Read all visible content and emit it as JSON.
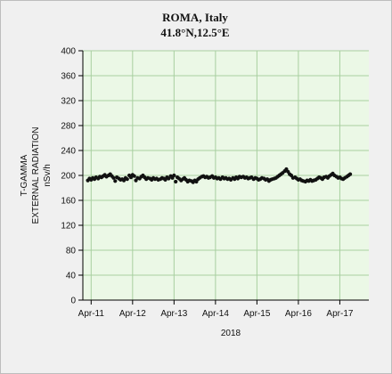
{
  "chart_data": {
    "type": "scatter",
    "title": "ROMA, Italy",
    "subtitle": "41.8°N,12.5°E",
    "ylabel_lines": [
      "T-GAMMA",
      "EXTERNAL RADIATION",
      "nSv/h"
    ],
    "xlabel": "2018",
    "ylim": [
      0,
      400
    ],
    "y_ticks": [
      0,
      40,
      80,
      120,
      160,
      200,
      240,
      280,
      320,
      360,
      400
    ],
    "x_ticks": [
      "Apr-11",
      "Apr-12",
      "Apr-13",
      "Apr-14",
      "Apr-15",
      "Apr-16",
      "Apr-17"
    ],
    "x_tick_day": [
      11,
      12,
      13,
      14,
      15,
      16,
      17
    ],
    "xlim_day": [
      10.8,
      17.7
    ],
    "grid": true,
    "colors": {
      "plot_bg": "#ebf8e6",
      "grid": "#a8cfa0",
      "marker": "#111111"
    },
    "series": [
      {
        "x_day": [
          10.92,
          10.96,
          11.0,
          11.04,
          11.08,
          11.12,
          11.17,
          11.21,
          11.25,
          11.29,
          11.33,
          11.37,
          11.42,
          11.46,
          11.5,
          11.54,
          11.58,
          11.62,
          11.67,
          11.71,
          11.75,
          11.79,
          11.83,
          11.87,
          11.92,
          11.96,
          12.0,
          12.04,
          12.08,
          12.12,
          12.17,
          12.21,
          12.25,
          12.29,
          12.33,
          12.37,
          12.42,
          12.46,
          12.5,
          12.54,
          12.58,
          12.62,
          12.67,
          12.71,
          12.75,
          12.79,
          12.83,
          12.87,
          12.92,
          12.96,
          13.0,
          13.04,
          13.08,
          13.12,
          13.17,
          13.21,
          13.25,
          13.29,
          13.33,
          13.37,
          13.42,
          13.46,
          13.5,
          13.54,
          13.58,
          13.62,
          13.67,
          13.71,
          13.75,
          13.79,
          13.83,
          13.87,
          13.92,
          13.96,
          14.0,
          14.04,
          14.08,
          14.12,
          14.17,
          14.21,
          14.25,
          14.29,
          14.33,
          14.37,
          14.42,
          14.46,
          14.5,
          14.54,
          14.58,
          14.62,
          14.67,
          14.71,
          14.75,
          14.79,
          14.83,
          14.87,
          14.92,
          14.96,
          15.0,
          15.04,
          15.08,
          15.12,
          15.17,
          15.21,
          15.25,
          15.29,
          15.33,
          15.37,
          15.42,
          15.46,
          15.5,
          15.54,
          15.58,
          15.62,
          15.67,
          15.71,
          15.75,
          15.79,
          15.83,
          15.87,
          15.92,
          15.96,
          16.0,
          16.04,
          16.08,
          16.12,
          16.17,
          16.21,
          16.25,
          16.29,
          16.33,
          16.37,
          16.42,
          16.46,
          16.5,
          16.54,
          16.58,
          16.62,
          16.67,
          16.71,
          16.75,
          16.79,
          16.83,
          16.87,
          16.92,
          16.96,
          17.0,
          17.04,
          17.08,
          17.12,
          17.17,
          17.21,
          17.25
        ],
        "y": [
          192,
          195,
          193,
          196,
          194,
          197,
          195,
          198,
          197,
          199,
          201,
          198,
          200,
          202,
          199,
          196,
          191,
          197,
          195,
          193,
          194,
          192,
          196,
          194,
          200,
          197,
          201,
          199,
          192,
          196,
          195,
          198,
          200,
          197,
          194,
          196,
          195,
          193,
          196,
          194,
          195,
          193,
          194,
          196,
          195,
          193,
          197,
          195,
          199,
          196,
          200,
          190,
          197,
          195,
          192,
          194,
          196,
          193,
          190,
          192,
          191,
          189,
          192,
          190,
          194,
          196,
          198,
          199,
          197,
          198,
          196,
          197,
          199,
          196,
          197,
          195,
          196,
          194,
          197,
          195,
          196,
          194,
          195,
          193,
          196,
          194,
          197,
          195,
          198,
          197,
          198,
          196,
          197,
          195,
          196,
          197,
          194,
          196,
          195,
          193,
          194,
          196,
          195,
          193,
          194,
          191,
          193,
          194,
          195,
          196,
          198,
          200,
          202,
          204,
          207,
          210,
          206,
          202,
          200,
          196,
          197,
          195,
          193,
          194,
          192,
          191,
          190,
          192,
          191,
          193,
          191,
          192,
          193,
          195,
          197,
          196,
          194,
          197,
          198,
          196,
          199,
          201,
          203,
          200,
          198,
          196,
          197,
          195,
          194,
          196,
          198,
          200,
          202
        ]
      }
    ]
  }
}
